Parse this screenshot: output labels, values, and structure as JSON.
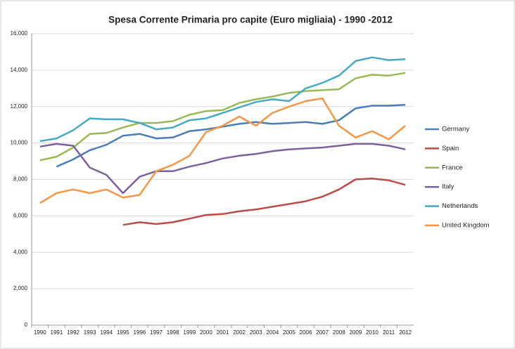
{
  "chart_data": {
    "type": "line",
    "title": "Spesa Corrente Primaria pro capite (Euro migliaia)  - 1990 -2012",
    "categories": [
      "1990",
      "1991",
      "1992",
      "1993",
      "1994",
      "1995",
      "1996",
      "1997",
      "1998",
      "1999",
      "2000",
      "2001",
      "2002",
      "2003",
      "2004",
      "2005",
      "2006",
      "2007",
      "2008",
      "2009",
      "2010",
      "2011",
      "2012"
    ],
    "series": [
      {
        "name": "Germany",
        "color": "#4a7ebb",
        "values": [
          null,
          8700,
          9100,
          9600,
          9900,
          10400,
          10500,
          10250,
          10300,
          10650,
          10750,
          10900,
          11050,
          11150,
          11050,
          11100,
          11150,
          11050,
          11250,
          11900,
          12050,
          12050,
          12100
        ]
      },
      {
        "name": "Spain",
        "color": "#be4b48",
        "values": [
          null,
          null,
          null,
          null,
          null,
          5500,
          5650,
          5550,
          5650,
          5850,
          6050,
          6100,
          6250,
          6350,
          6500,
          6650,
          6800,
          7050,
          7450,
          8000,
          8050,
          7950,
          7700
        ]
      },
      {
        "name": "France",
        "color": "#98b954",
        "values": [
          9050,
          9250,
          9750,
          10500,
          10550,
          10850,
          11100,
          11100,
          11200,
          11550,
          11750,
          11800,
          12200,
          12400,
          12550,
          12750,
          12850,
          12900,
          12950,
          13550,
          13750,
          13700,
          13850
        ]
      },
      {
        "name": "Italy",
        "color": "#7d60a0",
        "values": [
          9800,
          9950,
          9850,
          8650,
          8250,
          7250,
          8150,
          8450,
          8450,
          8700,
          8900,
          9150,
          9300,
          9400,
          9550,
          9650,
          9700,
          9750,
          9850,
          9950,
          9950,
          9850,
          9650
        ]
      },
      {
        "name": "Netherlands",
        "color": "#46aac5",
        "values": [
          10100,
          10250,
          10700,
          11350,
          11300,
          11300,
          11100,
          10750,
          10850,
          11250,
          11350,
          11650,
          11950,
          12250,
          12400,
          12300,
          13000,
          13300,
          13700,
          14500,
          14700,
          14550,
          14600
        ]
      },
      {
        "name": "United Kingdom",
        "color": "#f79646",
        "values": [
          6700,
          7250,
          7450,
          7250,
          7450,
          7000,
          7150,
          8450,
          8800,
          9300,
          10600,
          10950,
          11450,
          10950,
          11650,
          12000,
          12300,
          12450,
          10950,
          10300,
          10650,
          10200,
          10950
        ]
      }
    ],
    "ylim": [
      0,
      16000
    ],
    "yticks": [
      0,
      {
        "value": 2000,
        "label": "2,000"
      },
      {
        "value": 4000,
        "label": "4,000"
      },
      {
        "value": 6000,
        "label": "6,000"
      },
      {
        "value": 8000,
        "label": "8,000"
      },
      {
        "value": 10000,
        "label": "10,000"
      },
      {
        "value": 12000,
        "label": "12,000"
      },
      {
        "value": 14000,
        "label": "14,000"
      },
      {
        "value": 16000,
        "label": "16,000"
      }
    ],
    "grid": true,
    "legend": "right"
  }
}
